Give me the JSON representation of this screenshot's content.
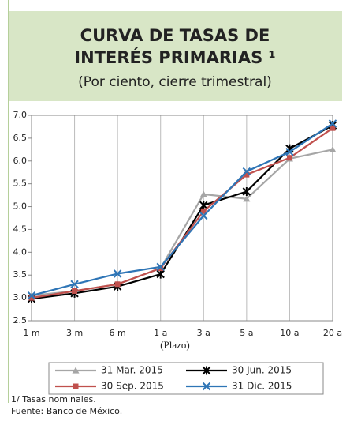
{
  "chart_data": {
    "type": "line",
    "title_lines": [
      "CURVA DE TASAS DE",
      "INTERÉS PRIMARIAS ¹"
    ],
    "subtitle": "(Por ciento, cierre trimestral)",
    "x_label": "(Plazo)",
    "categories": [
      "1 m",
      "3 m",
      "6 m",
      "1 a",
      "3 a",
      "5 a",
      "10 a",
      "20 a"
    ],
    "series": [
      {
        "name": "31 Mar. 2015",
        "color": "#a6a6a6",
        "marker": "triangle",
        "values": [
          3.05,
          3.15,
          3.3,
          3.65,
          5.27,
          5.17,
          6.05,
          6.25
        ]
      },
      {
        "name": "30 Jun. 2015",
        "color": "#000000",
        "marker": "star",
        "values": [
          2.98,
          3.1,
          3.25,
          3.52,
          5.03,
          5.33,
          6.27,
          6.78
        ]
      },
      {
        "name": "30 Sep. 2015",
        "color": "#c0504d",
        "marker": "square",
        "values": [
          3.0,
          3.15,
          3.3,
          3.65,
          4.9,
          5.7,
          6.07,
          6.72
        ]
      },
      {
        "name": "31 Dic. 2015",
        "color": "#2e75b6",
        "marker": "x",
        "values": [
          3.05,
          3.3,
          3.53,
          3.68,
          4.8,
          5.77,
          6.2,
          6.82
        ]
      }
    ],
    "ylim": [
      2.5,
      7
    ],
    "yticks": [
      {
        "value": 2.5,
        "label": "2.5"
      },
      {
        "value": 3,
        "label": "3.0"
      },
      {
        "value": 3.5,
        "label": "3.5"
      },
      {
        "value": 4,
        "label": "4.0"
      },
      {
        "value": 4.5,
        "label": "4.5"
      },
      {
        "value": 5,
        "label": "5.0"
      },
      {
        "value": 5.5,
        "label": "5.5"
      },
      {
        "value": 6,
        "label": "6.0"
      },
      {
        "value": 6.5,
        "label": "6.5"
      },
      {
        "value": 7,
        "label": "7.0"
      }
    ],
    "notes": [
      "1/ Tasas nominales.",
      "Fuente:  Banco de México."
    ]
  }
}
